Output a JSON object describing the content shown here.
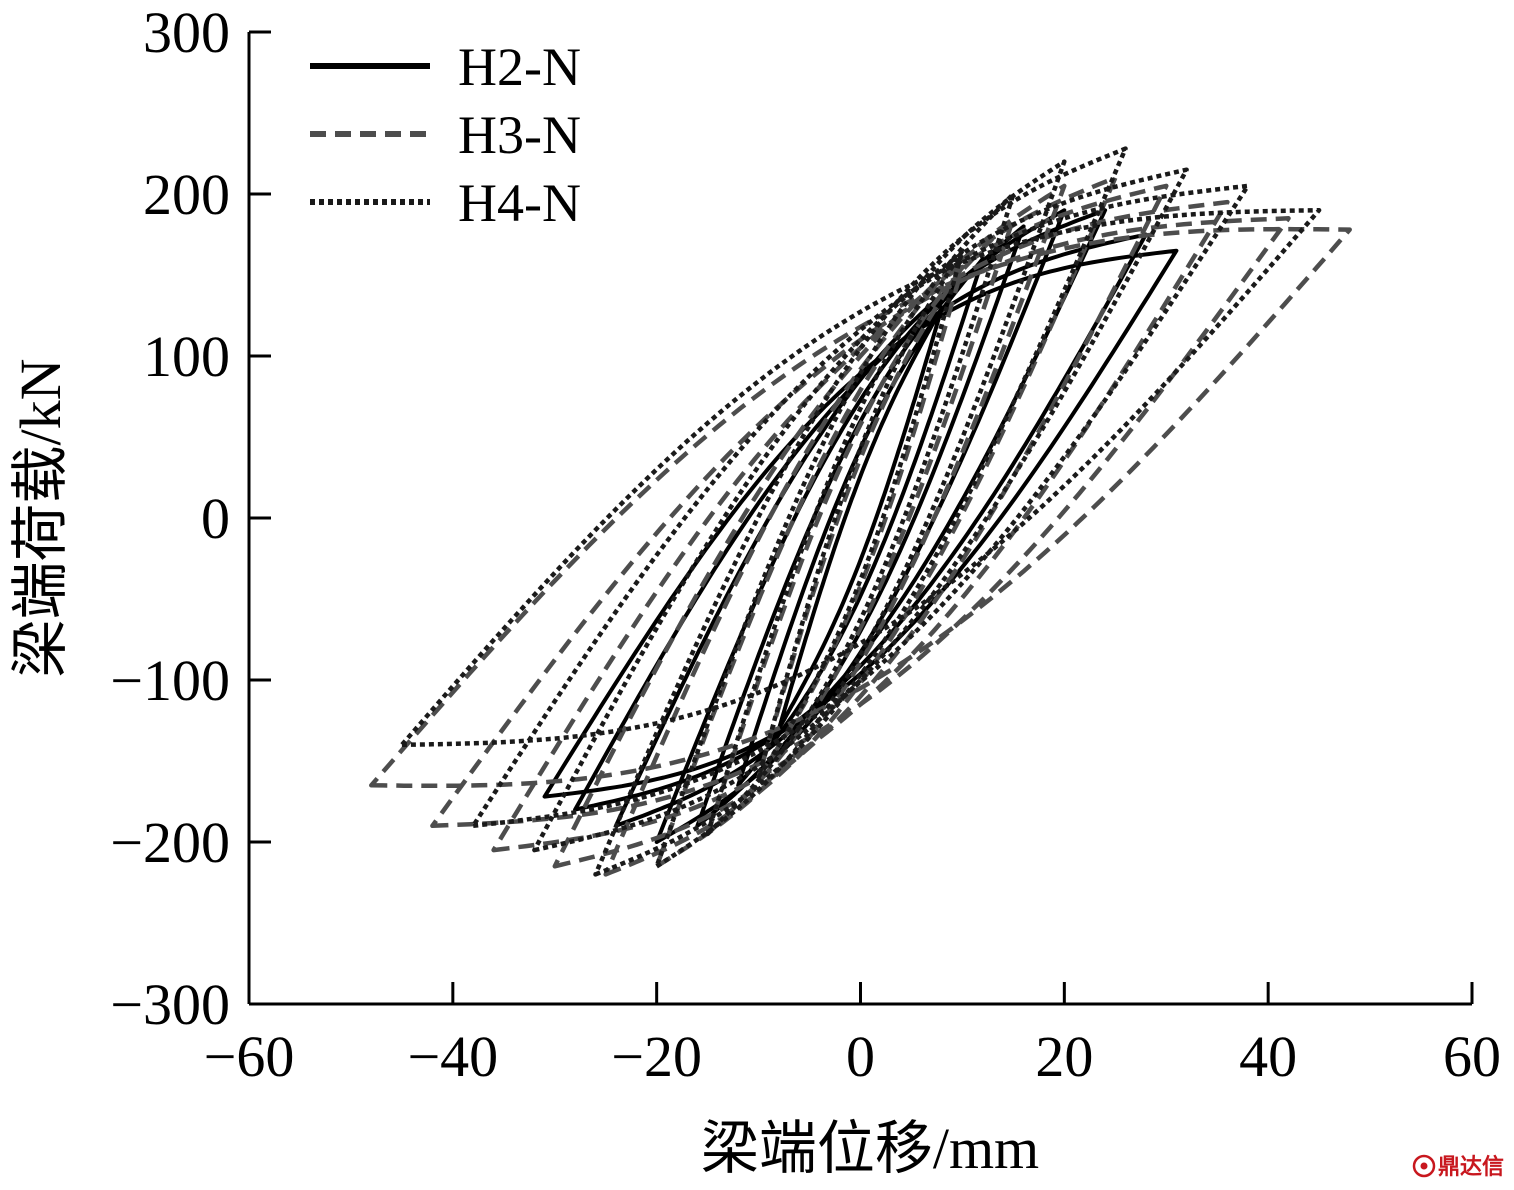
{
  "chart_data": {
    "type": "line",
    "title": "",
    "xlabel": "梁端位移/mm",
    "ylabel": "梁端荷载/kN",
    "xlim": [
      -60,
      60
    ],
    "ylim": [
      -300,
      300
    ],
    "xticks": [
      -60,
      -40,
      -20,
      0,
      20,
      40,
      60
    ],
    "yticks": [
      -300,
      -200,
      -100,
      0,
      100,
      200,
      300
    ],
    "xtick_labels": [
      "−60",
      "−40",
      "−20",
      "0",
      "20",
      "40",
      "60"
    ],
    "ytick_labels": [
      "−300",
      "−200",
      "−100",
      "0",
      "100",
      "200",
      "300"
    ],
    "grid": false,
    "legend_position": "top-left",
    "series": [
      {
        "name": "H2-N",
        "line_style": "solid",
        "color": "#000000",
        "loops": [
          {
            "d": 8,
            "pmax": 130,
            "pmin": -130,
            "fat": 0.2
          },
          {
            "d": 12,
            "pmax": 160,
            "pmin": -165,
            "fat": 0.28
          },
          {
            "d": 16,
            "pmax": 180,
            "pmin": -190,
            "fat": 0.35
          },
          {
            "d": 20,
            "pmax": 190,
            "pmin": -200,
            "fat": 0.4
          },
          {
            "d": 24,
            "pmax": 190,
            "pmin": -190,
            "fat": 0.45
          },
          {
            "d": 28,
            "pmax": 175,
            "pmin": -180,
            "fat": 0.5
          },
          {
            "d": 31,
            "pmax": 165,
            "pmin": -172,
            "fat": 0.55
          }
        ]
      },
      {
        "name": "H3-N",
        "line_style": "dashed",
        "color": "#4d4d4d",
        "loops": [
          {
            "d": 10,
            "pmax": 155,
            "pmin": -160,
            "fat": 0.25
          },
          {
            "d": 15,
            "pmax": 185,
            "pmin": -195,
            "fat": 0.33
          },
          {
            "d": 20,
            "pmax": 205,
            "pmin": -215,
            "fat": 0.4
          },
          {
            "d": 25,
            "pmax": 210,
            "pmin": -220,
            "fat": 0.45
          },
          {
            "d": 30,
            "pmax": 205,
            "pmin": -215,
            "fat": 0.5
          },
          {
            "d": 36,
            "pmax": 195,
            "pmin": -205,
            "fat": 0.55
          },
          {
            "d": 42,
            "pmax": 185,
            "pmin": -190,
            "fat": 0.6
          },
          {
            "d": 48,
            "pmax": 178,
            "pmin": -165,
            "fat": 0.65
          }
        ]
      },
      {
        "name": "H4-N",
        "line_style": "dotted",
        "color": "#1a1a1a",
        "loops": [
          {
            "d": 10,
            "pmax": 165,
            "pmin": -160,
            "fat": 0.25
          },
          {
            "d": 15,
            "pmax": 200,
            "pmin": -195,
            "fat": 0.33
          },
          {
            "d": 20,
            "pmax": 220,
            "pmin": -215,
            "fat": 0.4
          },
          {
            "d": 26,
            "pmax": 228,
            "pmin": -220,
            "fat": 0.45
          },
          {
            "d": 32,
            "pmax": 215,
            "pmin": -205,
            "fat": 0.5
          },
          {
            "d": 38,
            "pmax": 205,
            "pmin": -190,
            "fat": 0.55
          },
          {
            "d": 45,
            "pmax": 190,
            "pmin": -140,
            "fat": 0.62
          }
        ]
      }
    ]
  },
  "watermark": {
    "text": "鼎达信",
    "icon": "seal-icon",
    "color": "#c8171e"
  }
}
